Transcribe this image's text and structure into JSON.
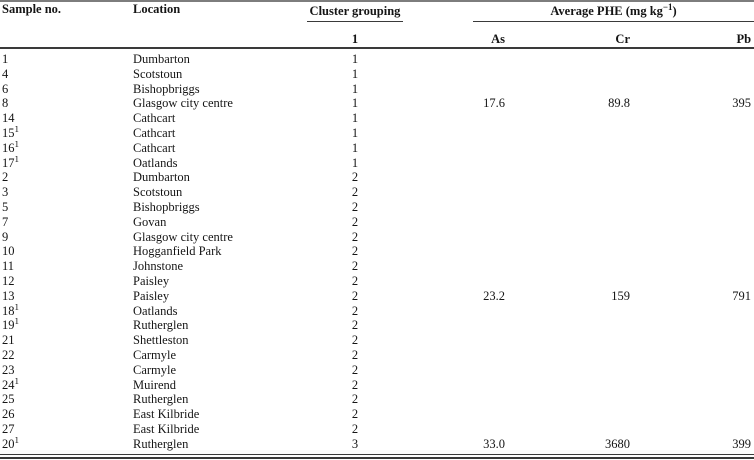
{
  "table": {
    "group_headers": {
      "cluster": "Cluster grouping",
      "phe_prefix": "Average PHE (mg kg",
      "phe_sup": "−1",
      "phe_suffix": ")"
    },
    "columns": {
      "sample": "Sample no.",
      "location": "Location",
      "cluster_sub": "1",
      "as": "As",
      "cr": "Cr",
      "pb": "Pb"
    },
    "rows": [
      {
        "sample": "1",
        "sample_sup": "",
        "location": "Dumbarton",
        "cluster": "1",
        "as": "",
        "cr": "",
        "pb": ""
      },
      {
        "sample": "4",
        "sample_sup": "",
        "location": "Scotstoun",
        "cluster": "1",
        "as": "",
        "cr": "",
        "pb": ""
      },
      {
        "sample": "6",
        "sample_sup": "",
        "location": "Bishopbriggs",
        "cluster": "1",
        "as": "",
        "cr": "",
        "pb": ""
      },
      {
        "sample": "8",
        "sample_sup": "",
        "location": "Glasgow city centre",
        "cluster": "1",
        "as": "17.6",
        "cr": "89.8",
        "pb": "395"
      },
      {
        "sample": "14",
        "sample_sup": "",
        "location": "Cathcart",
        "cluster": "1",
        "as": "",
        "cr": "",
        "pb": ""
      },
      {
        "sample": "15",
        "sample_sup": "1",
        "location": "Cathcart",
        "cluster": "1",
        "as": "",
        "cr": "",
        "pb": ""
      },
      {
        "sample": "16",
        "sample_sup": "1",
        "location": "Cathcart",
        "cluster": "1",
        "as": "",
        "cr": "",
        "pb": ""
      },
      {
        "sample": "17",
        "sample_sup": "1",
        "location": "Oatlands",
        "cluster": "1",
        "as": "",
        "cr": "",
        "pb": ""
      },
      {
        "sample": "2",
        "sample_sup": "",
        "location": "Dumbarton",
        "cluster": "2",
        "as": "",
        "cr": "",
        "pb": ""
      },
      {
        "sample": "3",
        "sample_sup": "",
        "location": "Scotstoun",
        "cluster": "2",
        "as": "",
        "cr": "",
        "pb": ""
      },
      {
        "sample": "5",
        "sample_sup": "",
        "location": "Bishopbriggs",
        "cluster": "2",
        "as": "",
        "cr": "",
        "pb": ""
      },
      {
        "sample": "7",
        "sample_sup": "",
        "location": "Govan",
        "cluster": "2",
        "as": "",
        "cr": "",
        "pb": ""
      },
      {
        "sample": "9",
        "sample_sup": "",
        "location": "Glasgow city centre",
        "cluster": "2",
        "as": "",
        "cr": "",
        "pb": ""
      },
      {
        "sample": "10",
        "sample_sup": "",
        "location": "Hogganfield Park",
        "cluster": "2",
        "as": "",
        "cr": "",
        "pb": ""
      },
      {
        "sample": "11",
        "sample_sup": "",
        "location": "Johnstone",
        "cluster": "2",
        "as": "",
        "cr": "",
        "pb": ""
      },
      {
        "sample": "12",
        "sample_sup": "",
        "location": "Paisley",
        "cluster": "2",
        "as": "",
        "cr": "",
        "pb": ""
      },
      {
        "sample": "13",
        "sample_sup": "",
        "location": "Paisley",
        "cluster": "2",
        "as": "23.2",
        "cr": "159",
        "pb": "791"
      },
      {
        "sample": "18",
        "sample_sup": "1",
        "location": "Oatlands",
        "cluster": "2",
        "as": "",
        "cr": "",
        "pb": ""
      },
      {
        "sample": "19",
        "sample_sup": "1",
        "location": "Rutherglen",
        "cluster": "2",
        "as": "",
        "cr": "",
        "pb": ""
      },
      {
        "sample": "21",
        "sample_sup": "",
        "location": "Shettleston",
        "cluster": "2",
        "as": "",
        "cr": "",
        "pb": ""
      },
      {
        "sample": "22",
        "sample_sup": "",
        "location": "Carmyle",
        "cluster": "2",
        "as": "",
        "cr": "",
        "pb": ""
      },
      {
        "sample": "23",
        "sample_sup": "",
        "location": "Carmyle",
        "cluster": "2",
        "as": "",
        "cr": "",
        "pb": ""
      },
      {
        "sample": "24",
        "sample_sup": "1",
        "location": "Muirend",
        "cluster": "2",
        "as": "",
        "cr": "",
        "pb": ""
      },
      {
        "sample": "25",
        "sample_sup": "",
        "location": "Rutherglen",
        "cluster": "2",
        "as": "",
        "cr": "",
        "pb": ""
      },
      {
        "sample": "26",
        "sample_sup": "",
        "location": "East Kilbride",
        "cluster": "2",
        "as": "",
        "cr": "",
        "pb": ""
      },
      {
        "sample": "27",
        "sample_sup": "",
        "location": "East Kilbride",
        "cluster": "2",
        "as": "",
        "cr": "",
        "pb": ""
      },
      {
        "sample": "20",
        "sample_sup": "1",
        "location": "Rutherglen",
        "cluster": "3",
        "as": "33.0",
        "cr": "3680",
        "pb": "399"
      }
    ]
  }
}
